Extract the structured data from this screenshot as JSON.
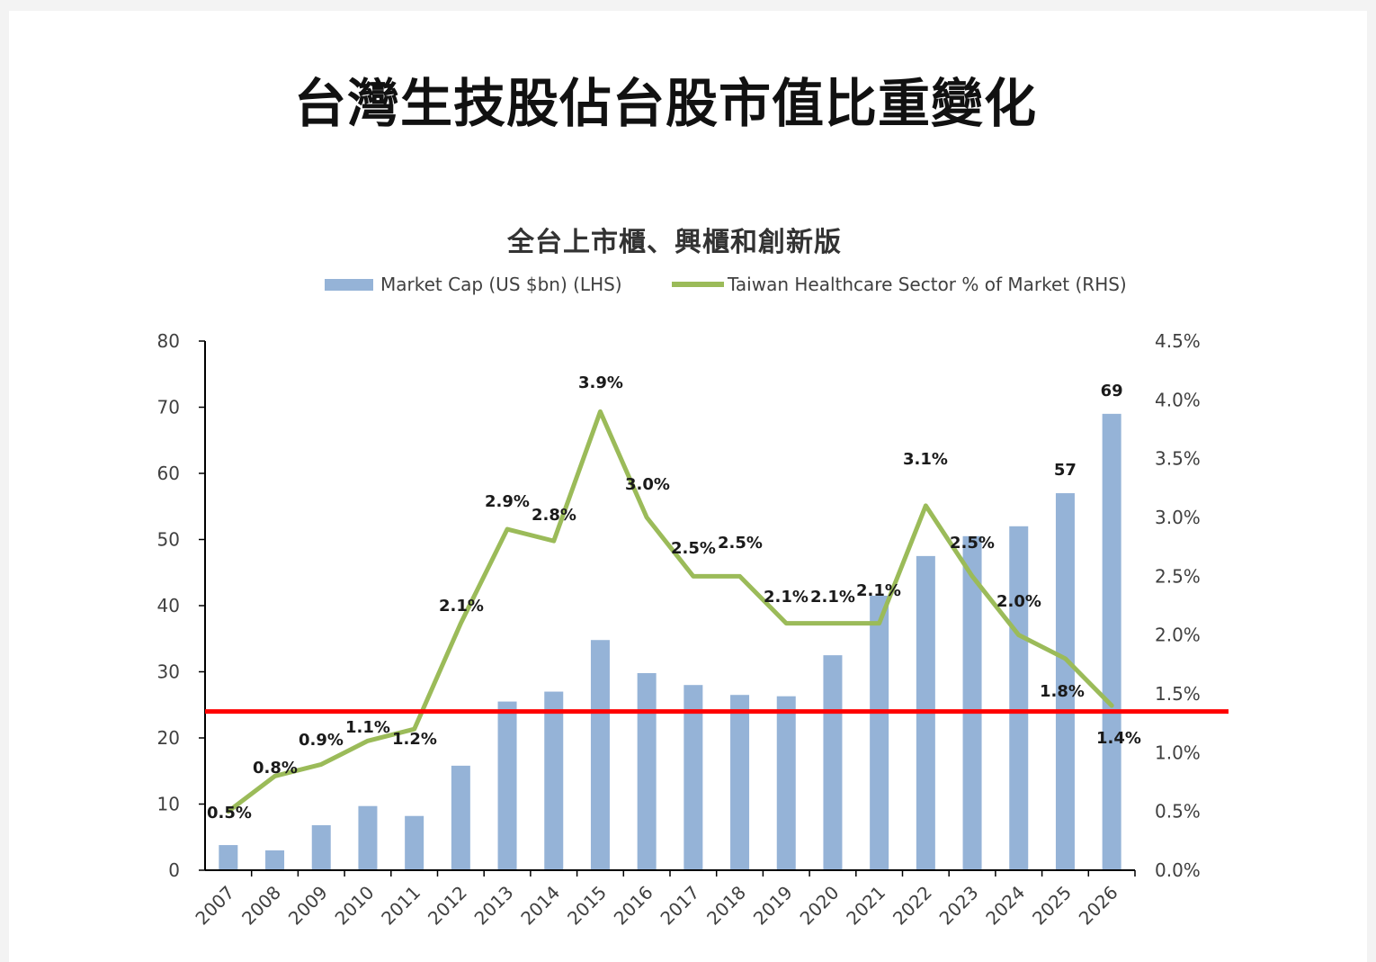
{
  "page": {
    "title": "台灣生技股佔台股市值比重變化"
  },
  "chart_data": {
    "type": "bar",
    "title": "全台上市櫃、興櫃和創新版",
    "categories": [
      "2007",
      "2008",
      "2009",
      "2010",
      "2011",
      "2012",
      "2013",
      "2014",
      "2015",
      "2016",
      "2017",
      "2018",
      "2019",
      "2020",
      "2021",
      "2022",
      "2023",
      "2024",
      "2025",
      "2026"
    ],
    "series": [
      {
        "name": "Market Cap (US $bn) (LHS)",
        "type": "bar",
        "axis": "left",
        "color": "#95b3d7",
        "values": [
          3.8,
          3.0,
          6.8,
          9.7,
          8.2,
          15.8,
          25.5,
          27.0,
          34.8,
          29.8,
          28.0,
          26.5,
          26.3,
          32.5,
          41.5,
          47.5,
          50.5,
          52.0,
          57,
          69
        ]
      },
      {
        "name": "Taiwan Healthcare Sector % of Market (RHS)",
        "type": "line",
        "axis": "right",
        "color": "#9bbb59",
        "values": [
          0.5,
          0.8,
          0.9,
          1.1,
          1.2,
          2.1,
          2.9,
          2.8,
          3.9,
          3.0,
          2.5,
          2.5,
          2.1,
          2.1,
          2.1,
          3.1,
          2.5,
          2.0,
          1.8,
          1.4
        ],
        "labels": [
          "0.5%",
          "0.8%",
          "0.9%",
          "1.1%",
          "1.2%",
          "2.1%",
          "2.9%",
          "2.8%",
          "3.9%",
          "3.0%",
          "2.5%",
          "2.5%",
          "2.1%",
          "2.1%",
          "2.1%",
          "3.1%",
          "2.5%",
          "2.0%",
          "1.8%",
          "1.4%"
        ]
      }
    ],
    "bar_labels": [
      {
        "index": 18,
        "text": "57"
      },
      {
        "index": 19,
        "text": "69"
      }
    ],
    "left_axis": {
      "ylim": [
        0,
        80
      ],
      "ticks": [
        "0",
        "10",
        "20",
        "30",
        "40",
        "50",
        "60",
        "70",
        "80"
      ]
    },
    "right_axis": {
      "ylim": [
        0.0,
        4.5
      ],
      "ticks": [
        "0.0%",
        "0.5%",
        "1.0%",
        "1.5%",
        "2.0%",
        "2.5%",
        "3.0%",
        "3.5%",
        "4.0%",
        "4.5%"
      ]
    },
    "reference_line": {
      "axis": "right",
      "value": 1.35,
      "color": "#ff0000"
    },
    "legend": "top",
    "grid": false
  }
}
